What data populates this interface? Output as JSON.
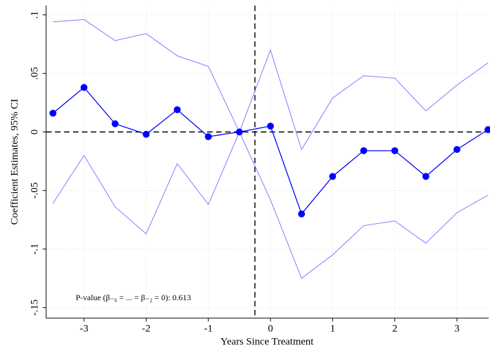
{
  "chart_data": {
    "type": "line",
    "x_label": "Years Since Treatment",
    "y_label": "Coefficient Estimates, 95% CI",
    "annotation": "P-value (β₋₆ = ... = β₋₂ = 0): 0.613",
    "x": [
      -3.5,
      -3,
      -2.5,
      -2,
      -1.5,
      -1,
      -0.5,
      0,
      0.5,
      1,
      1.5,
      2,
      2.5,
      3,
      3.5
    ],
    "values": [
      0.016,
      0.038,
      0.007,
      -0.002,
      0.019,
      -0.004,
      0,
      0.005,
      -0.07,
      -0.038,
      -0.016,
      -0.016,
      -0.038,
      -0.015,
      0.002
    ],
    "ci_upper": [
      0.094,
      0.096,
      0.078,
      0.084,
      0.065,
      0.056,
      0,
      0.07,
      -0.015,
      0.029,
      0.048,
      0.046,
      0.018,
      0.04,
      0.059
    ],
    "ci_lower": [
      -0.061,
      -0.02,
      -0.064,
      -0.087,
      -0.027,
      -0.062,
      0,
      -0.058,
      -0.125,
      -0.105,
      -0.08,
      -0.076,
      -0.095,
      -0.069,
      -0.054
    ],
    "color": "#0000ff",
    "ci_color": "#7b7bff",
    "xlim": [
      -3.61,
      3.51
    ],
    "ylim": [
      -0.159,
      0.108
    ],
    "xticks": [
      -3,
      -2,
      -1,
      0,
      1,
      2,
      3
    ],
    "yticks": [
      {
        "value": 0.1,
        "label": ".1"
      },
      {
        "value": 0.05,
        "label": ".05"
      },
      0,
      {
        "value": -0.05,
        "label": "-.05"
      },
      {
        "value": -0.1,
        "label": "-.1"
      },
      {
        "value": -0.15,
        "label": "-.15"
      }
    ],
    "vline": -0.25,
    "hline": 0,
    "grid": true
  }
}
